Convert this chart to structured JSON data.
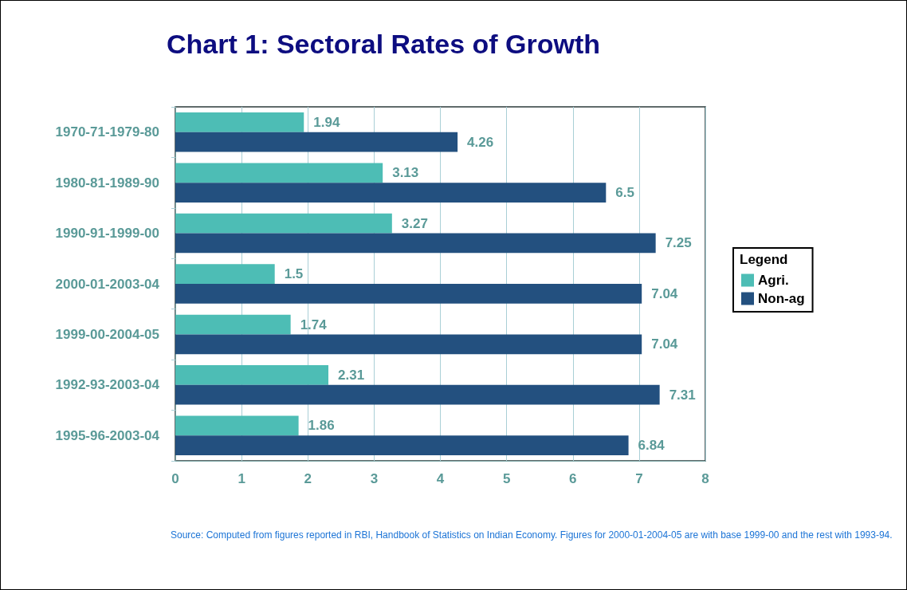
{
  "chart_data": {
    "type": "bar",
    "orientation": "horizontal",
    "title": "Chart 1: Sectoral Rates of Growth",
    "categories": [
      "1970-71-1979-80",
      "1980-81-1989-90",
      "1990-91-1999-00",
      "2000-01-2003-04",
      "1999-00-2004-05",
      "1992-93-2003-04",
      "1995-96-2003-04"
    ],
    "series": [
      {
        "name": "Agri.",
        "color": "#4dbdb5",
        "values": [
          1.94,
          3.13,
          3.27,
          1.5,
          1.74,
          2.31,
          1.86
        ]
      },
      {
        "name": "Non-ag",
        "color": "#23507f",
        "values": [
          4.26,
          6.5,
          7.25,
          7.04,
          7.04,
          7.31,
          6.84
        ]
      }
    ],
    "xlim": [
      0,
      8
    ],
    "xticks": [
      0,
      1,
      2,
      3,
      4,
      5,
      6,
      7,
      8
    ],
    "grid": "x",
    "legend": "right",
    "legend_title": "Legend",
    "data_labels": true,
    "annotations": [
      "Source: Computed from figures reported in RBI, Handbook of Statistics on Indian Economy. Figures for 2000-01-2004-05 are with base 1999-00 and the rest with 1993-94."
    ]
  }
}
